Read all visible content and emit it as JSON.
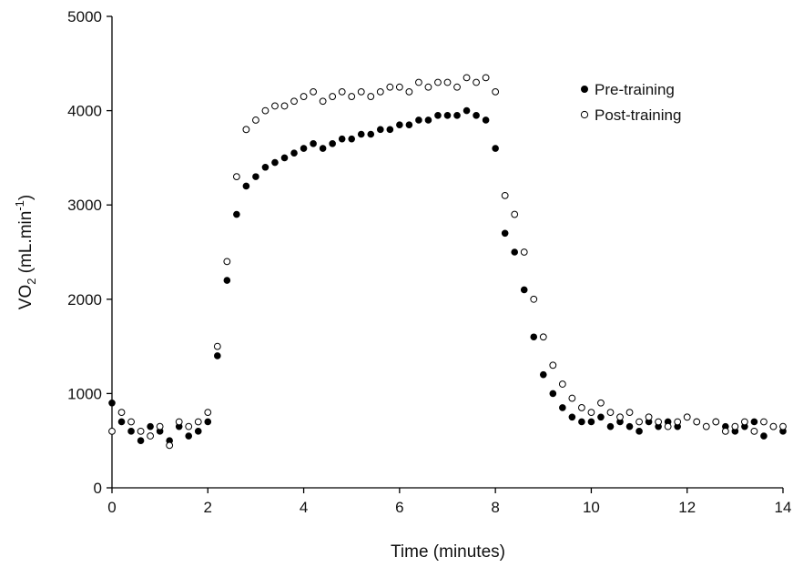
{
  "chart_data": {
    "type": "scatter",
    "xlabel": "Time (minutes)",
    "ylabel": [
      "VO",
      "2",
      " (mL.min",
      "-1",
      ")"
    ],
    "xlim": [
      0,
      14
    ],
    "xticks": [
      0,
      2,
      4,
      6,
      8,
      10,
      12,
      14
    ],
    "ylim": [
      0,
      5000
    ],
    "yticks": [
      0,
      1000,
      2000,
      3000,
      4000,
      5000
    ],
    "grid": false,
    "legend": "upper right",
    "x": [
      0,
      0.2,
      0.4,
      0.6,
      0.8,
      1,
      1.2,
      1.4,
      1.6,
      1.8,
      2,
      2.2,
      2.4,
      2.6,
      2.8,
      3,
      3.2,
      3.4,
      3.6,
      3.8,
      4,
      4.2,
      4.4,
      4.6,
      4.8,
      5,
      5.2,
      5.4,
      5.6,
      5.8,
      6,
      6.2,
      6.4,
      6.6,
      6.8,
      7,
      7.2,
      7.4,
      7.6,
      7.8,
      8,
      8.2,
      8.4,
      8.6,
      8.8,
      9,
      9.2,
      9.4,
      9.6,
      9.8,
      10,
      10.2,
      10.4,
      10.6,
      10.8,
      11,
      11.2,
      11.4,
      11.6,
      11.8,
      12,
      12.2,
      12.4,
      12.6,
      12.8,
      13,
      13.2,
      13.4,
      13.6,
      13.8,
      14
    ],
    "series": [
      {
        "name": "Pre-training",
        "color": "#000000",
        "marker": "filled",
        "values": [
          900,
          700,
          600,
          500,
          650,
          600,
          500,
          650,
          550,
          600,
          700,
          1400,
          2200,
          2900,
          3200,
          3300,
          3400,
          3450,
          3500,
          3550,
          3600,
          3650,
          3600,
          3650,
          3700,
          3700,
          3750,
          3750,
          3800,
          3800,
          3850,
          3850,
          3900,
          3900,
          3950,
          3950,
          3950,
          4000,
          3950,
          3900,
          3600,
          2700,
          2500,
          2100,
          1600,
          1200,
          1000,
          850,
          750,
          700,
          700,
          750,
          650,
          700,
          650,
          600,
          700,
          650,
          700,
          650,
          750,
          700,
          650,
          700,
          650,
          600,
          650,
          700,
          550,
          650,
          600
        ]
      },
      {
        "name": "Post-training",
        "color": "#000000",
        "marker": "open",
        "values": [
          600,
          800,
          700,
          600,
          550,
          650,
          450,
          700,
          650,
          700,
          800,
          1500,
          2400,
          3300,
          3800,
          3900,
          4000,
          4050,
          4050,
          4100,
          4150,
          4200,
          4100,
          4150,
          4200,
          4150,
          4200,
          4150,
          4200,
          4250,
          4250,
          4200,
          4300,
          4250,
          4300,
          4300,
          4250,
          4350,
          4300,
          4350,
          4200,
          3100,
          2900,
          2500,
          2000,
          1600,
          1300,
          1100,
          950,
          850,
          800,
          900,
          800,
          750,
          800,
          700,
          750,
          700,
          650,
          700,
          750,
          700,
          650,
          700,
          600,
          650,
          700,
          600,
          700,
          650,
          650
        ]
      }
    ]
  }
}
